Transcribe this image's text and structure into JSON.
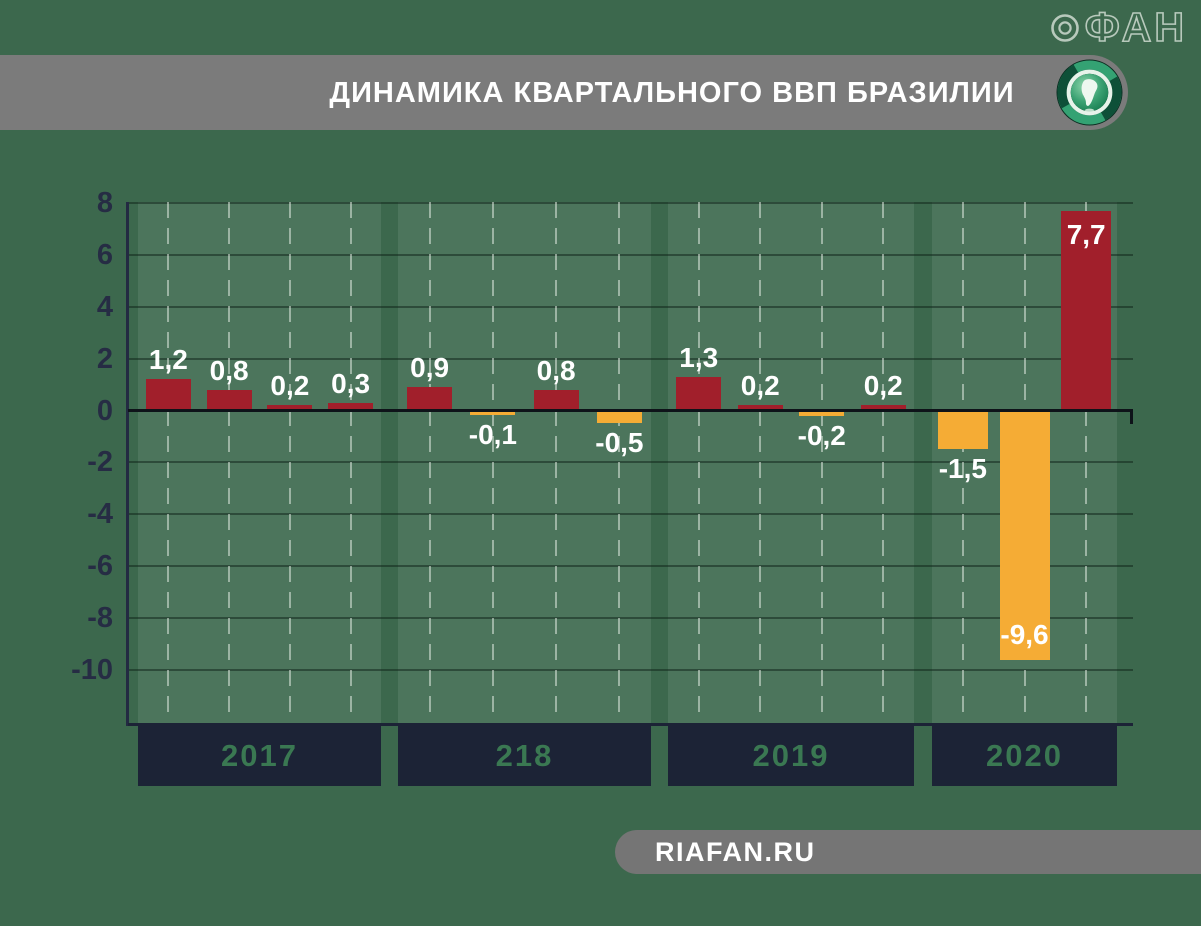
{
  "watermark": {
    "text": "ФАН",
    "ring_icon": "fan-ring-icon"
  },
  "header": {
    "title": "ДИНАМИКА КВАРТАЛЬНОГО ВВП БРАЗИЛИИ",
    "logo_icon": "south-america-globe-icon"
  },
  "footer": {
    "site": "RIAFAN.RU"
  },
  "colors": {
    "background": "#3C684D",
    "band_overlay": "rgba(255,255,255,0.085)",
    "positive_bar": "#A11F2B",
    "negative_bar": "#F5AC35",
    "navy_box": "#1C2336",
    "axis_label": "#262C44",
    "year_label": "#3A7852",
    "header_gray": "#7B7B7B",
    "value_label_text": "#FFFFFF"
  },
  "chart_data": {
    "type": "bar",
    "title": "ДИНАМИКА КВАРТАЛЬНОГО ВВП БРАЗИЛИИ",
    "xlabel": "",
    "ylabel": "",
    "ylim": [
      -12,
      8
    ],
    "yticks": [
      8,
      6,
      4,
      2,
      0,
      -2,
      -4,
      -6,
      -8,
      -10
    ],
    "grid": true,
    "legend": false,
    "categories": [
      "2017",
      "218",
      "2019",
      "2020"
    ],
    "groups": [
      {
        "label": "2017",
        "values": [
          1.2,
          0.8,
          0.2,
          0.3
        ],
        "display_labels": [
          "1,2",
          "0,8",
          "0,2",
          "0,3"
        ]
      },
      {
        "label": "218",
        "values": [
          0.9,
          -0.1,
          0.8,
          -0.5
        ],
        "display_labels": [
          "0,9",
          "-0,1",
          "0,8",
          "-0,5"
        ]
      },
      {
        "label": "2019",
        "values": [
          1.3,
          0.2,
          -0.2,
          0.2
        ],
        "display_labels": [
          "1,3",
          "0,2",
          "-0,2",
          "0,2"
        ]
      },
      {
        "label": "2020",
        "values": [
          -1.5,
          -9.6,
          7.7
        ],
        "display_labels": [
          "-1,5",
          "-9,6",
          "7,7"
        ]
      }
    ]
  }
}
